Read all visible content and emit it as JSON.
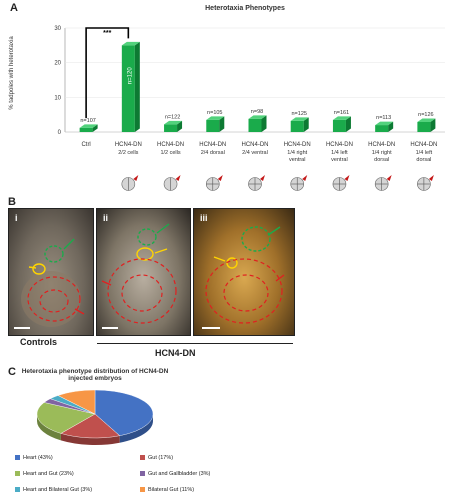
{
  "panels": {
    "a": "A",
    "b": "B",
    "c": "C"
  },
  "chart_data": [
    {
      "type": "bar",
      "title": "Heterotaxia Phenotypes",
      "ylabel": "% tadpoles with heterotaxia",
      "ylim": [
        0,
        30
      ],
      "yticks": [
        "0",
        "10",
        "20",
        "30"
      ],
      "significance": "***",
      "categories": [
        {
          "name": "Ctrl",
          "sub": "",
          "n": "n=107"
        },
        {
          "name": "HCN4-DN",
          "sub": "2/2 cells",
          "n": "n=120"
        },
        {
          "name": "HCN4-DN",
          "sub": "1/2 cells",
          "n": "n=122"
        },
        {
          "name": "HCN4-DN",
          "sub": "2/4 dorsal",
          "n": "n=105"
        },
        {
          "name": "HCN4-DN",
          "sub": "2/4 ventral",
          "n": "n=98"
        },
        {
          "name": "HCN4-DN",
          "sub": "1/4 right ventral",
          "n": "n=125"
        },
        {
          "name": "HCN4-DN",
          "sub": "1/4 left ventral",
          "n": "n=161"
        },
        {
          "name": "HCN4-DN",
          "sub": "1/4 right dorsal",
          "n": "n=113"
        },
        {
          "name": "HCN4-DN",
          "sub": "1/4 left dorsal",
          "n": "n=126"
        }
      ],
      "values": [
        1.2,
        25,
        2.2,
        3.5,
        3.8,
        3.2,
        3.5,
        2.0,
        2.9
      ],
      "color": "#1aab4b"
    },
    {
      "type": "pie",
      "title": "Heterotaxia phenotype distribution of HCN4-DN injected embryos",
      "slices": [
        {
          "label": "Heart (43%)",
          "value": 43,
          "color": "#4472c4"
        },
        {
          "label": "Gut (17%)",
          "value": 17,
          "color": "#c0504d"
        },
        {
          "label": "Heart and Gut (23%)",
          "value": 23,
          "color": "#9bbb59"
        },
        {
          "label": "Gut and Gallbladder (3%)",
          "value": 3,
          "color": "#8064a2"
        },
        {
          "label": "Heart and Bilateral Gut (3%)",
          "value": 3,
          "color": "#4bacc6"
        },
        {
          "label": "Bilateral Gut (11%)",
          "value": 11,
          "color": "#f79646"
        }
      ]
    }
  ],
  "photos": {
    "i": "i",
    "ii": "ii",
    "iii": "iii",
    "controls_label": "Controls",
    "hcn4_label": "HCN4-DN"
  }
}
